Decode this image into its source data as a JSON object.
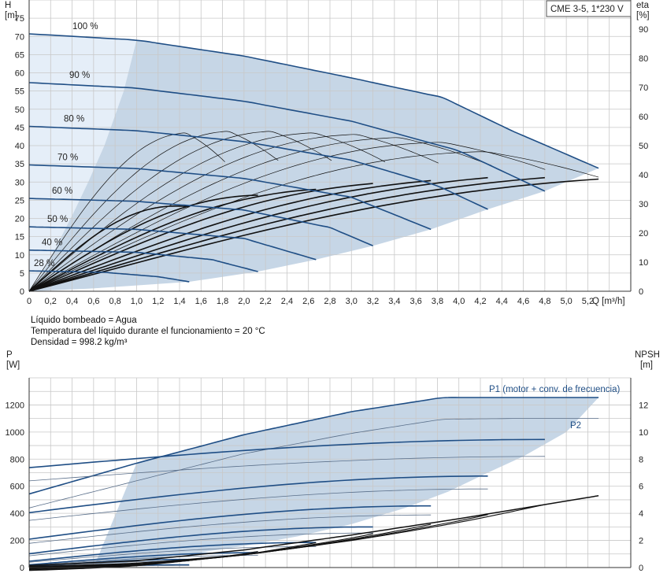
{
  "chart_data": [
    {
      "type": "line",
      "title": "CME 3-5, 1*230 V",
      "xlabel": "Q [m³/h]",
      "ylabel_top": "H",
      "ylabel_unit": "[m]",
      "y2label_top": "eta",
      "y2label_unit": "[%]",
      "xlim": [
        0,
        5.6
      ],
      "ylim": [
        0,
        80
      ],
      "y2lim": [
        0,
        100
      ],
      "x_ticks": [
        "0",
        "0,2",
        "0,4",
        "0,6",
        "0,8",
        "1,0",
        "1,2",
        "1,4",
        "1,6",
        "1,8",
        "2,0",
        "2,2",
        "2,4",
        "2,6",
        "2,8",
        "3,0",
        "3,2",
        "3,4",
        "3,6",
        "3,8",
        "4,0",
        "4,2",
        "4,4",
        "4,6",
        "4,8",
        "5,0",
        "5,2"
      ],
      "y_ticks": [
        "0",
        "5",
        "10",
        "15",
        "20",
        "25",
        "30",
        "35",
        "40",
        "45",
        "50",
        "55",
        "60",
        "65",
        "70",
        "75"
      ],
      "y2_ticks": [
        "0",
        "10",
        "20",
        "30",
        "40",
        "50",
        "60",
        "70",
        "80",
        "90"
      ],
      "grid": true,
      "series": [
        {
          "name": "100 %",
          "x": [
            0,
            1.0,
            2.0,
            3.0,
            3.85,
            4.5,
            5.3
          ],
          "y": [
            70.7,
            69.0,
            64.6,
            58.6,
            53.2,
            44.0,
            33.8
          ]
        },
        {
          "name": "90 %",
          "x": [
            0,
            1.0,
            2.0,
            3.0,
            4.0,
            4.8
          ],
          "y": [
            57.3,
            55.8,
            52.2,
            46.7,
            38.6,
            27.5
          ]
        },
        {
          "name": "80 %",
          "x": [
            0,
            1.0,
            2.0,
            3.0,
            3.8,
            4.27
          ],
          "y": [
            45.3,
            44.1,
            41.1,
            36.0,
            29.0,
            22.5
          ]
        },
        {
          "name": "70 %",
          "x": [
            0,
            1.0,
            2.0,
            3.0,
            3.74
          ],
          "y": [
            34.7,
            33.7,
            31.0,
            25.8,
            17.0
          ]
        },
        {
          "name": "60 %",
          "x": [
            0,
            1.0,
            2.0,
            2.8,
            3.2
          ],
          "y": [
            25.5,
            24.7,
            22.3,
            17.5,
            12.5
          ]
        },
        {
          "name": "50 %",
          "x": [
            0,
            1.0,
            2.0,
            2.67
          ],
          "y": [
            17.7,
            17.0,
            14.5,
            8.7
          ]
        },
        {
          "name": "40 %",
          "x": [
            0,
            1.0,
            1.7,
            2.13
          ],
          "y": [
            11.3,
            10.7,
            8.7,
            5.4
          ]
        },
        {
          "name": "28 %",
          "x": [
            0,
            0.7,
            1.2,
            1.49
          ],
          "y": [
            5.6,
            5.2,
            4.0,
            2.6
          ]
        }
      ],
      "eta_end_x": [
        1.49,
        2.13,
        2.67,
        3.2,
        3.74,
        4.27,
        4.8,
        5.3
      ],
      "eta_end_pct": [
        29,
        33,
        35,
        37,
        38,
        39,
        39,
        38.5
      ],
      "eta_max_pct": 44.5,
      "eta_envelope_pct": [
        50.5,
        51,
        51,
        50.5,
        50,
        49,
        47.5,
        44.5
      ]
    },
    {
      "type": "line",
      "xlim": [
        0,
        5.6
      ],
      "ylabel_top": "P",
      "ylabel_unit": "[W]",
      "y2label_top": "NPSH",
      "y2label_unit": "[m]",
      "ylim": [
        0,
        1400
      ],
      "y2lim": [
        0,
        14
      ],
      "y_ticks": [
        "0",
        "200",
        "400",
        "600",
        "800",
        "1000",
        "1200"
      ],
      "y2_ticks": [
        "0",
        "2",
        "4",
        "6",
        "8",
        "10",
        "12"
      ],
      "grid": true,
      "series": [
        {
          "name": "P1 (motor + conv. de frecuencia)",
          "x": [
            0,
            1.0,
            2.0,
            3.0,
            3.85,
            4.5,
            5.3
          ],
          "y": [
            543,
            770,
            980,
            1150,
            1255,
            1255,
            1255
          ]
        },
        {
          "name": "P2",
          "x": [
            0,
            1.0,
            2.0,
            3.0,
            3.85,
            4.5,
            5.3
          ],
          "y": [
            440,
            640,
            840,
            990,
            1095,
            1100,
            1100
          ]
        }
      ],
      "p1_partial_end": [
        945,
        675,
        455,
        300,
        185,
        110,
        60,
        20
      ],
      "p2_partial_end": [
        820,
        580,
        388,
        255,
        155,
        90,
        48,
        15
      ],
      "p_partial_start_ratio": [
        0.78,
        0.6,
        0.46,
        0.34,
        0.25,
        0.18,
        0.12,
        0.06
      ],
      "npsh": {
        "x": [
          0,
          1.0,
          2.0,
          3.0,
          4.0,
          5.3
        ],
        "y": [
          0.15,
          0.5,
          1.3,
          2.4,
          3.6,
          5.3
        ]
      }
    }
  ],
  "info": {
    "line1": "Líquido bombeado = Agua",
    "line2": "Temperatura del líquido durante el funcionamiento = 20 °C",
    "line3": "Densidad = 998.2 kg/m³"
  },
  "colors": {
    "curve": "#1f4e85",
    "band": "#c6d6e6",
    "light_band": "#e5eef8",
    "grid": "#c8c8c8",
    "eta": "#111111"
  }
}
